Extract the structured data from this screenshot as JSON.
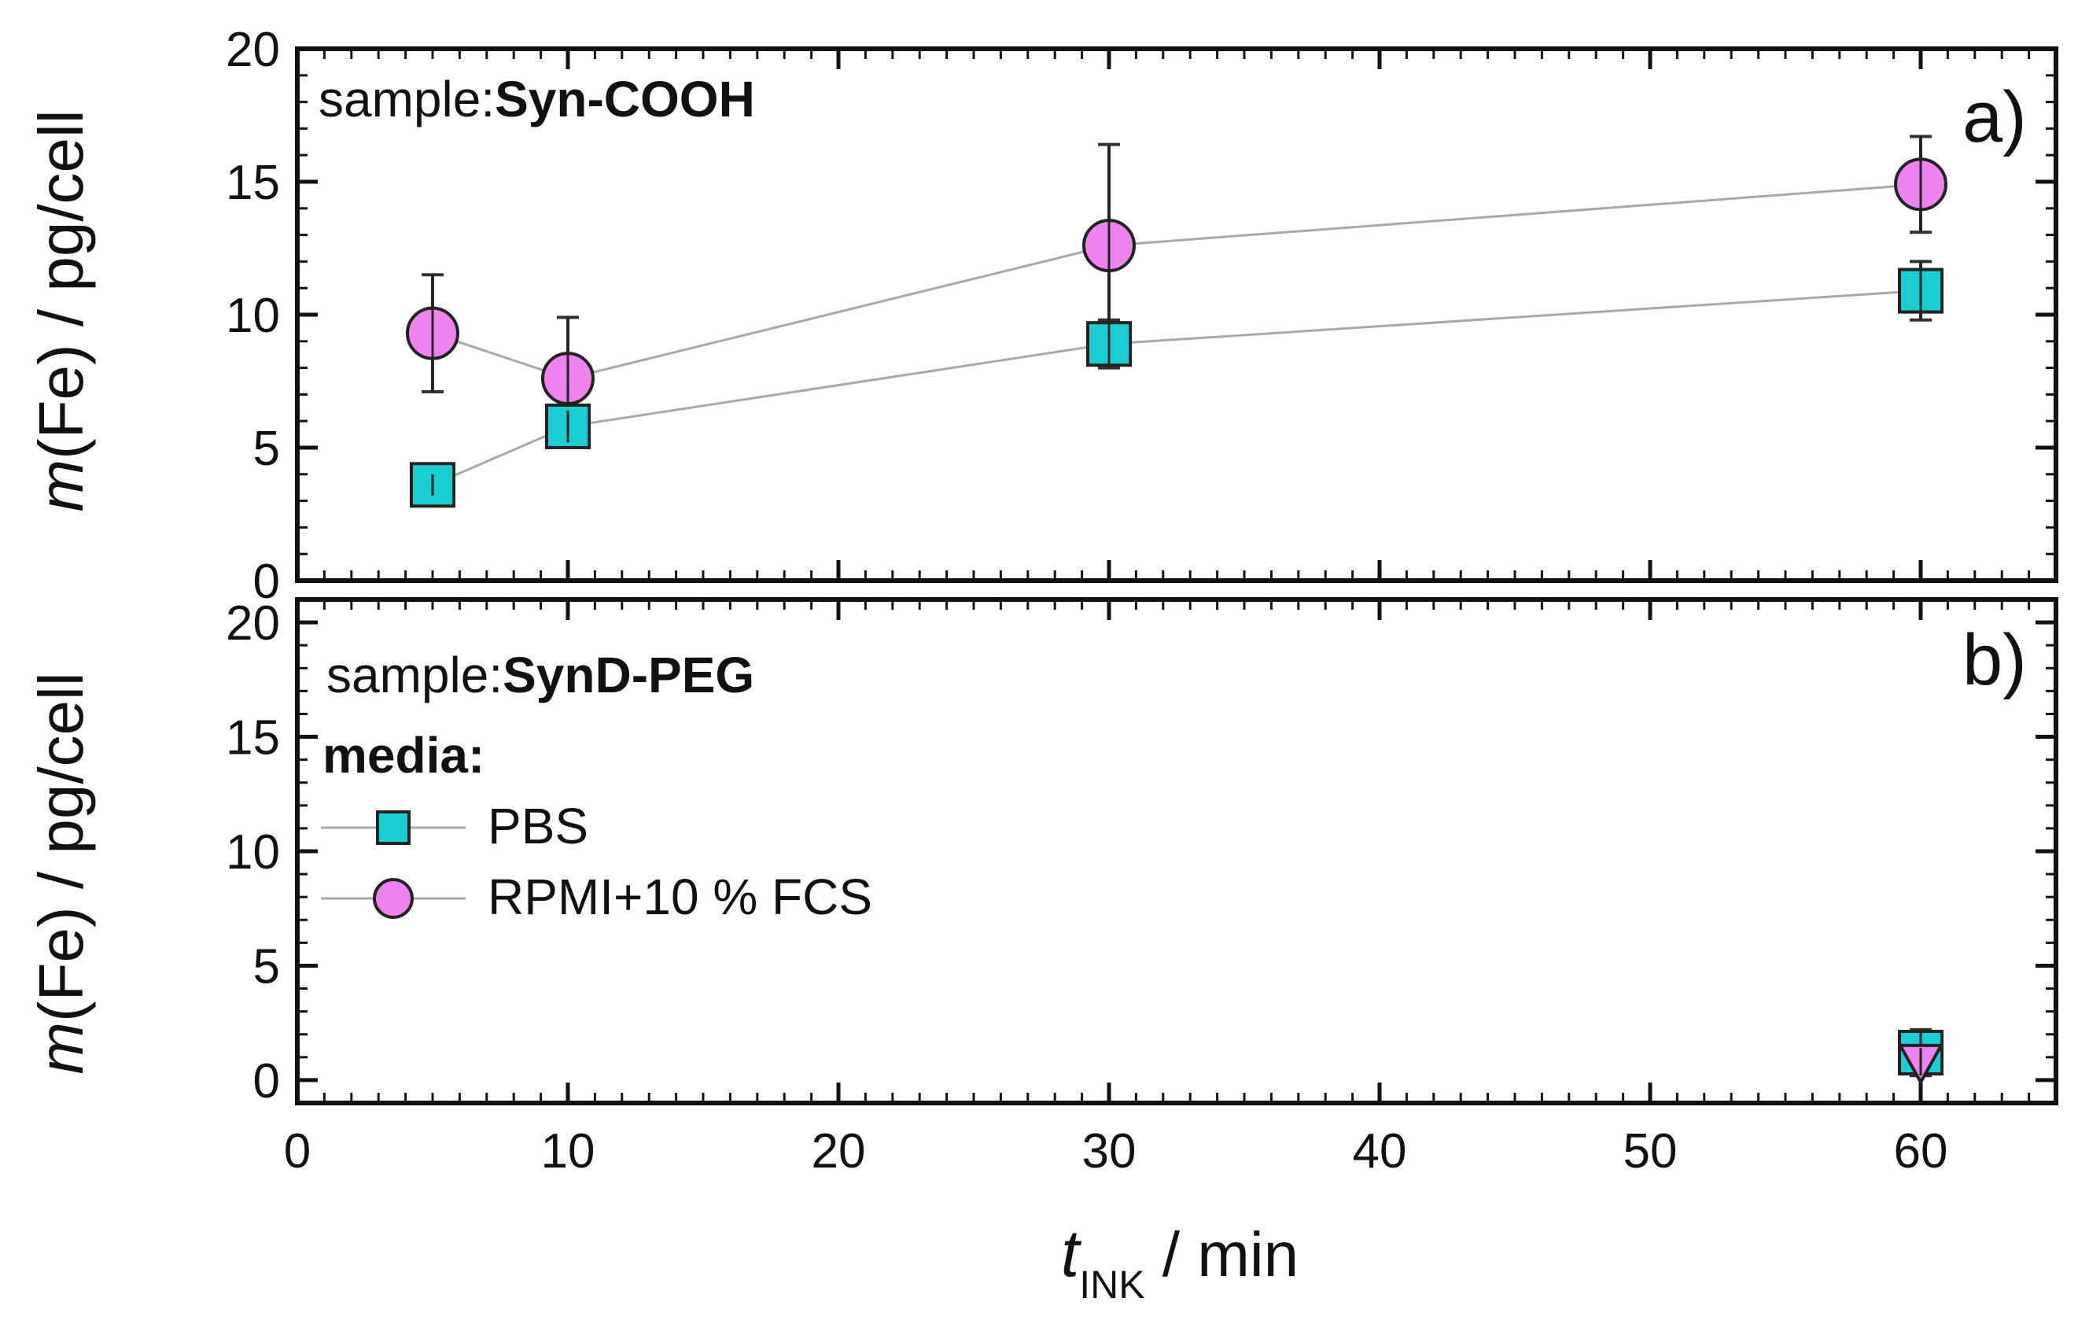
{
  "colors": {
    "pbs": "#19cfd4",
    "rpmi": "#ee82ee",
    "line": "#a8a8a8",
    "axis": "#111111"
  },
  "chart_data": [
    {
      "type": "scatter",
      "panel_label": "a)",
      "sample_prefix": "sample:",
      "sample_name": "Syn-COOH",
      "ylabel_italic": "m",
      "ylabel_rest": "(Fe) / pg/cell",
      "xlim": [
        0,
        65
      ],
      "ylim": [
        0,
        20
      ],
      "yticks": [
        "0",
        "5",
        "10",
        "15",
        "20"
      ],
      "series": [
        {
          "name": "PBS",
          "marker": "square",
          "points": [
            {
              "x": 5,
              "y": 3.6,
              "err": 0.4
            },
            {
              "x": 10,
              "y": 5.8,
              "err": 0.6
            },
            {
              "x": 30,
              "y": 8.9,
              "err": 0.9
            },
            {
              "x": 60,
              "y": 10.9,
              "err": 1.1
            }
          ]
        },
        {
          "name": "RPMI+10 % FCS",
          "marker": "circle",
          "points": [
            {
              "x": 5,
              "y": 9.3,
              "err": 2.2
            },
            {
              "x": 10,
              "y": 7.6,
              "err": 2.3
            },
            {
              "x": 30,
              "y": 12.6,
              "err": 3.8
            },
            {
              "x": 60,
              "y": 14.9,
              "err": 1.8
            }
          ]
        }
      ]
    },
    {
      "type": "scatter",
      "panel_label": "b)",
      "sample_prefix": "sample:",
      "sample_name": "SynD-PEG",
      "ylabel_italic": "m",
      "ylabel_rest": "(Fe) / pg/cell",
      "xlim": [
        0,
        65
      ],
      "ylim": [
        -1,
        21
      ],
      "yticks": [
        "0",
        "5",
        "10",
        "15",
        "20"
      ],
      "xticks": [
        "0",
        "10",
        "20",
        "30",
        "40",
        "50",
        "60"
      ],
      "xlabel_italic": "t",
      "xlabel_sub": "INK",
      "xlabel_rest": " / min",
      "legend_title": "media:",
      "legend_position": "left",
      "series": [
        {
          "name": "PBS",
          "marker": "square",
          "points": [
            {
              "x": 60,
              "y": 1.2,
              "err": 1.0
            }
          ]
        },
        {
          "name": "RPMI+10 % FCS",
          "marker": "triangle-down",
          "points": [
            {
              "x": 60,
              "y": 0.8,
              "err": 0.6
            }
          ]
        }
      ]
    }
  ]
}
